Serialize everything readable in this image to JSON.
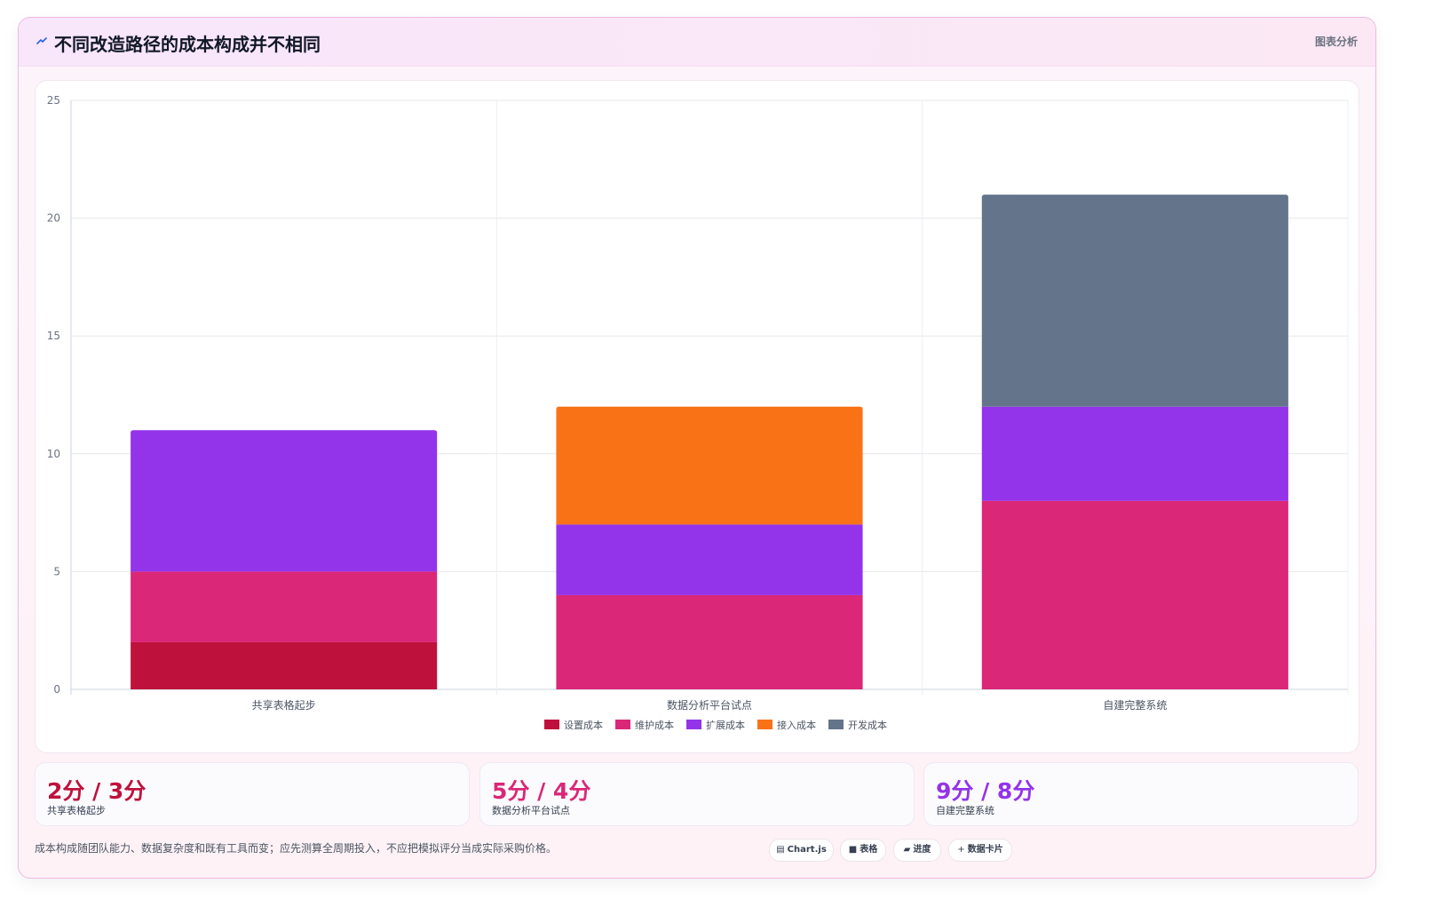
{
  "header": {
    "icon": "trend-line-icon",
    "title": "不同改造路径的成本构成并不相同",
    "tag": "图表分析"
  },
  "chart_data": {
    "type": "bar",
    "stacked": true,
    "categories": [
      "共享表格起步",
      "数据分析平台试点",
      "自建完整系统"
    ],
    "series": [
      {
        "name": "设置成本",
        "color": "#be123c",
        "values": [
          2,
          0,
          0
        ]
      },
      {
        "name": "维护成本",
        "color": "#db2777",
        "values": [
          3,
          4,
          8
        ]
      },
      {
        "name": "扩展成本",
        "color": "#9333ea",
        "values": [
          6,
          3,
          4
        ]
      },
      {
        "name": "接入成本",
        "color": "#f97316",
        "values": [
          0,
          5,
          0
        ]
      },
      {
        "name": "开发成本",
        "color": "#64748b",
        "values": [
          0,
          0,
          9
        ]
      }
    ],
    "ylim": [
      0,
      25
    ],
    "yticks": [
      0,
      5,
      10,
      15,
      20,
      25
    ],
    "grid": true,
    "legend": "bottom-center"
  },
  "stats": [
    {
      "value": "2分 / 3分",
      "label": "共享表格起步",
      "color": "#be123c"
    },
    {
      "value": "5分 / 4分",
      "label": "数据分析平台试点",
      "color": "#db2777"
    },
    {
      "value": "9分 / 8分",
      "label": "自建完整系统",
      "color": "#9333ea"
    }
  ],
  "footnote": "成本构成随团队能力、数据复杂度和既有工具而变；应先测算全周期投入，不应把模拟评分当成实际采购价格。",
  "chips": [
    {
      "glyph": "▤",
      "label": "Chart.js"
    },
    {
      "glyph": "■",
      "label": "表格"
    },
    {
      "glyph": "▰",
      "label": "进度"
    },
    {
      "glyph": "+",
      "label": "数据卡片"
    }
  ]
}
